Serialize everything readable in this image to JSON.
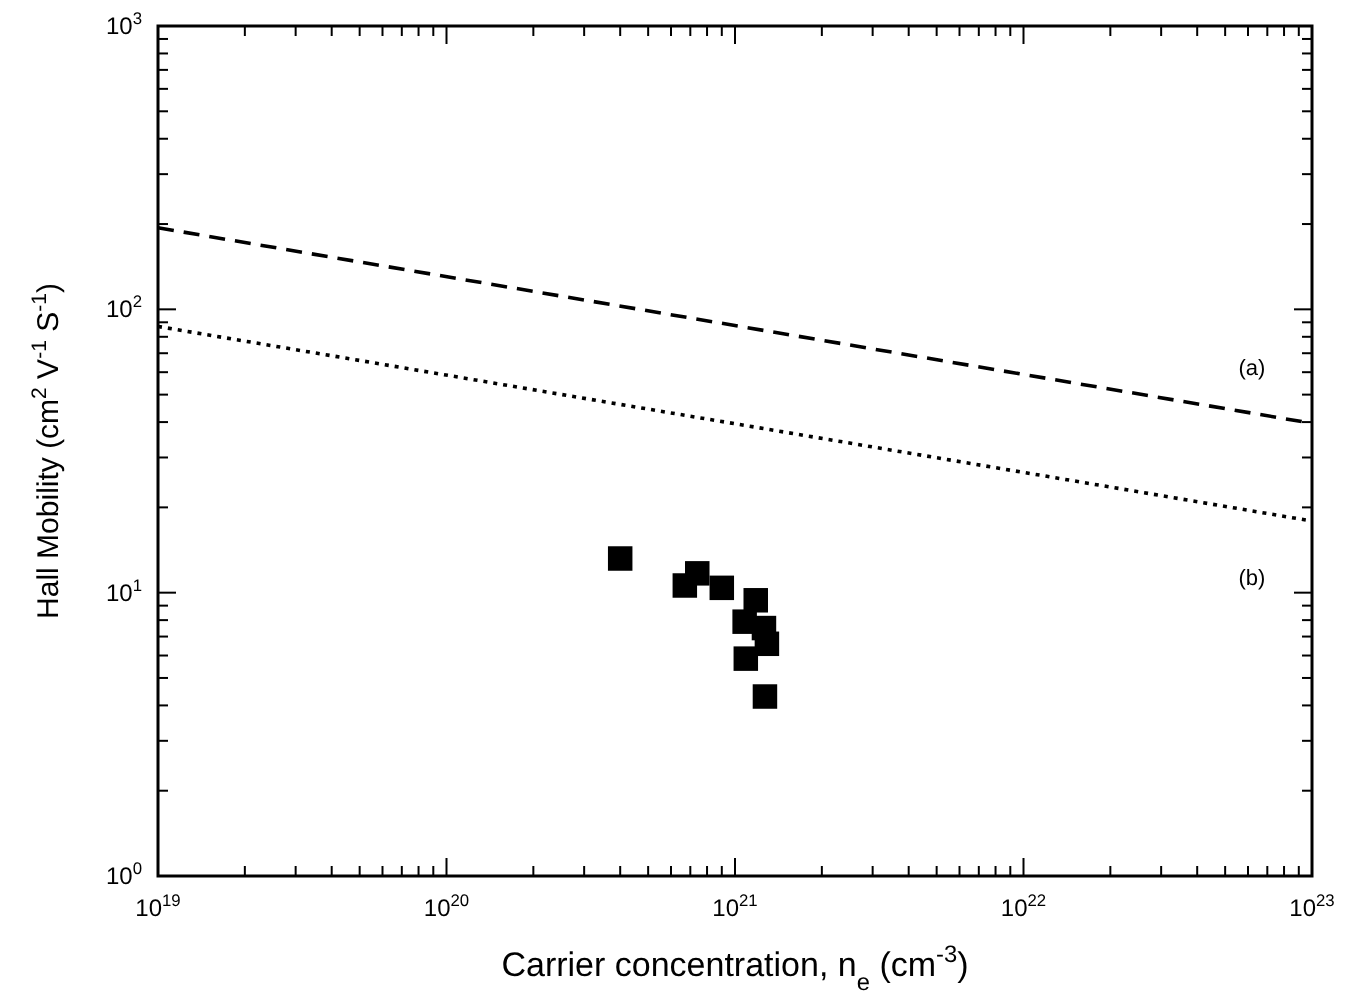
{
  "chart_data": {
    "type": "scatter",
    "xlabel": "Carrier concentration, n$_{e}$ (cm$^{-3}$)",
    "ylabel": "Hall Mobility (cm$^{2}$ V$^{-1}$ S$^{-1}$)",
    "log": "xy",
    "xlim": [
      1e+19,
      1e+23
    ],
    "ylim": [
      1,
      1000
    ],
    "xticks": [
      {
        "value": 1e+19,
        "label": "10$^{19}$"
      },
      {
        "value": 2e+19,
        "label": null
      },
      {
        "value": 3e+19,
        "label": null
      },
      {
        "value": 4e+19,
        "label": null
      },
      {
        "value": 5e+19,
        "label": null
      },
      {
        "value": 6e+19,
        "label": null
      },
      {
        "value": 7e+19,
        "label": null
      },
      {
        "value": 8e+19,
        "label": null
      },
      {
        "value": 9e+19,
        "label": null
      },
      {
        "value": 1e+20,
        "label": "10$^{20}$"
      },
      {
        "value": 2e+20,
        "label": null
      },
      {
        "value": 3e+20,
        "label": null
      },
      {
        "value": 4e+20,
        "label": null
      },
      {
        "value": 5e+20,
        "label": null
      },
      {
        "value": 6e+20,
        "label": null
      },
      {
        "value": 7e+20,
        "label": null
      },
      {
        "value": 8e+20,
        "label": null
      },
      {
        "value": 9e+20,
        "label": null
      },
      {
        "value": 1e+21,
        "label": "10$^{21}$"
      },
      {
        "value": 2e+21,
        "label": null
      },
      {
        "value": 3e+21,
        "label": null
      },
      {
        "value": 4e+21,
        "label": null
      },
      {
        "value": 5e+21,
        "label": null
      },
      {
        "value": 6e+21,
        "label": null
      },
      {
        "value": 7e+21,
        "label": null
      },
      {
        "value": 8e+21,
        "label": null
      },
      {
        "value": 9e+21,
        "label": null
      },
      {
        "value": 1e+22,
        "label": "10$^{22}$"
      },
      {
        "value": 2e+22,
        "label": null
      },
      {
        "value": 3e+22,
        "label": null
      },
      {
        "value": 4e+22,
        "label": null
      },
      {
        "value": 5e+22,
        "label": null
      },
      {
        "value": 6e+22,
        "label": null
      },
      {
        "value": 7e+22,
        "label": null
      },
      {
        "value": 8e+22,
        "label": null
      },
      {
        "value": 9e+22,
        "label": null
      },
      {
        "value": 1e+23,
        "label": "10$^{23}$"
      }
    ],
    "yticks": [
      {
        "value": 1,
        "label": "10$^{0}$"
      },
      {
        "value": 2,
        "label": null
      },
      {
        "value": 3,
        "label": null
      },
      {
        "value": 4,
        "label": null
      },
      {
        "value": 5,
        "label": null
      },
      {
        "value": 6,
        "label": null
      },
      {
        "value": 7,
        "label": null
      },
      {
        "value": 8,
        "label": null
      },
      {
        "value": 9,
        "label": null
      },
      {
        "value": 10,
        "label": "10$^{1}$"
      },
      {
        "value": 20,
        "label": null
      },
      {
        "value": 30,
        "label": null
      },
      {
        "value": 40,
        "label": null
      },
      {
        "value": 50,
        "label": null
      },
      {
        "value": 60,
        "label": null
      },
      {
        "value": 70,
        "label": null
      },
      {
        "value": 80,
        "label": null
      },
      {
        "value": 90,
        "label": null
      },
      {
        "value": 100,
        "label": "10$^{2}$"
      },
      {
        "value": 200,
        "label": null
      },
      {
        "value": 300,
        "label": null
      },
      {
        "value": 400,
        "label": null
      },
      {
        "value": 500,
        "label": null
      },
      {
        "value": 600,
        "label": null
      },
      {
        "value": 700,
        "label": null
      },
      {
        "value": 800,
        "label": null
      },
      {
        "value": 900,
        "label": null
      },
      {
        "value": 1000,
        "label": "10$^{3}$"
      }
    ],
    "grid": false,
    "marker": "square",
    "series": [
      {
        "color": "#000000",
        "x": [
          4e+20,
          7.4e+20,
          6.7e+20,
          9e+20,
          1.18e+21,
          1.08e+21,
          1.26e+21,
          1.29e+21,
          1.09e+21,
          1.27e+21
        ],
        "values": [
          13.2,
          11.7,
          10.6,
          10.4,
          9.4,
          7.9,
          7.5,
          6.6,
          5.85,
          4.3
        ]
      },
      {
        "type": "line",
        "color": "#000000",
        "line_style": "dashed",
        "marker": "none",
        "x": [
          1e+19,
          1e+23
        ],
        "values": [
          194,
          39.6
        ]
      },
      {
        "type": "line",
        "color": "#000000",
        "line_style": "dotted",
        "marker": "none",
        "x": [
          1e+19,
          1e+23
        ],
        "values": [
          87,
          17.9
        ]
      }
    ],
    "annotations": [
      "(a)",
      "(b)"
    ]
  }
}
